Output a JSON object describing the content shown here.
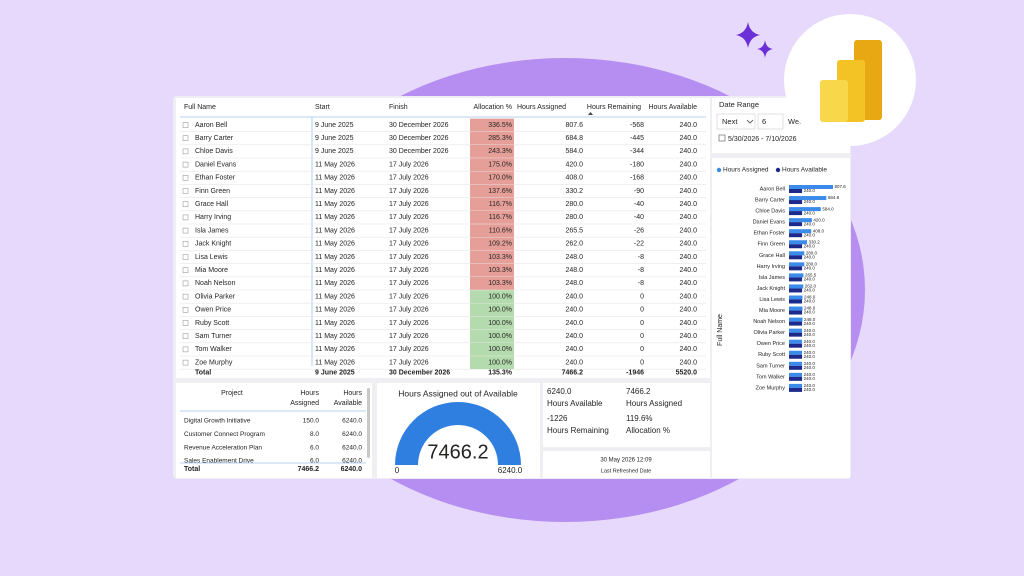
{
  "table": {
    "columns": [
      "Full Name",
      "Start",
      "Finish",
      "Allocation %",
      "Hours Assigned",
      "Hours Remaining",
      "Hours Available"
    ],
    "rows": [
      [
        "Aaron Bell",
        "9 June 2025",
        "30 December 2026",
        "336.5%",
        "807.6",
        "-568",
        "240.0"
      ],
      [
        "Barry Carter",
        "9 June 2025",
        "30 December 2026",
        "285.3%",
        "684.8",
        "-445",
        "240.0"
      ],
      [
        "Chloe Davis",
        "9 June 2025",
        "30 December 2026",
        "243.3%",
        "584.0",
        "-344",
        "240.0"
      ],
      [
        "Daniel Evans",
        "11 May 2026",
        "17 July 2026",
        "175.0%",
        "420.0",
        "-180",
        "240.0"
      ],
      [
        "Ethan Foster",
        "11 May 2026",
        "17 July 2026",
        "170.0%",
        "408.0",
        "-168",
        "240.0"
      ],
      [
        "Finn Green",
        "11 May 2026",
        "17 July 2026",
        "137.6%",
        "330.2",
        "-90",
        "240.0"
      ],
      [
        "Grace Hall",
        "11 May 2026",
        "17 July 2026",
        "116.7%",
        "280.0",
        "-40",
        "240.0"
      ],
      [
        "Harry Irving",
        "11 May 2026",
        "17 July 2026",
        "116.7%",
        "280.0",
        "-40",
        "240.0"
      ],
      [
        "Isla James",
        "11 May 2026",
        "17 July 2026",
        "110.6%",
        "265.5",
        "-26",
        "240.0"
      ],
      [
        "Jack Knight",
        "11 May 2026",
        "17 July 2026",
        "109.2%",
        "262.0",
        "-22",
        "240.0"
      ],
      [
        "Lisa Lewis",
        "11 May 2026",
        "17 July 2026",
        "103.3%",
        "248.0",
        "-8",
        "240.0"
      ],
      [
        "Mia Moore",
        "11 May 2026",
        "17 July 2026",
        "103.3%",
        "248.0",
        "-8",
        "240.0"
      ],
      [
        "Noah Nelson",
        "11 May 2026",
        "17 July 2026",
        "103.3%",
        "248.0",
        "-8",
        "240.0"
      ],
      [
        "Olivia Parker",
        "11 May 2026",
        "17 July 2026",
        "100.0%",
        "240.0",
        "0",
        "240.0"
      ],
      [
        "Owen Price",
        "11 May 2026",
        "17 July 2026",
        "100.0%",
        "240.0",
        "0",
        "240.0"
      ],
      [
        "Ruby Scott",
        "11 May 2026",
        "17 July 2026",
        "100.0%",
        "240.0",
        "0",
        "240.0"
      ],
      [
        "Sam Turner",
        "11 May 2026",
        "17 July 2026",
        "100.0%",
        "240.0",
        "0",
        "240.0"
      ],
      [
        "Tom Walker",
        "11 May 2026",
        "17 July 2026",
        "100.0%",
        "240.0",
        "0",
        "240.0"
      ],
      [
        "Zoe Murphy",
        "11 May 2026",
        "17 July 2026",
        "100.0%",
        "240.0",
        "0",
        "240.0"
      ]
    ],
    "total": [
      "Total",
      "9 June 2025",
      "30 December 2026",
      "135.3%",
      "7466.2",
      "-1946",
      "5520.0"
    ]
  },
  "date_range": {
    "title": "Date Range",
    "mode": "Next",
    "count": "6",
    "unit": "Weeks",
    "dates": "5/30/2026 - 7/10/2026"
  },
  "chart_data": {
    "type": "bar",
    "orientation": "horizontal",
    "y_label": "Full Name",
    "categories": [
      "Aaron Bell",
      "Barry Carter",
      "Chloe Davis",
      "Daniel Evans",
      "Ethan Foster",
      "Finn Green",
      "Grace Hall",
      "Harry Irving",
      "Isla James",
      "Jack Knight",
      "Lisa Lewis",
      "Mia Moore",
      "Noah Nelson",
      "Olivia Parker",
      "Owen Price",
      "Ruby Scott",
      "Sam Turner",
      "Tom Walker",
      "Zoe Murphy"
    ],
    "series": [
      {
        "name": "Hours Assigned",
        "color": "#3b8bea",
        "values": [
          807.6,
          684.8,
          584,
          420,
          408,
          330.2,
          280,
          280,
          265.5,
          262,
          248,
          248,
          248,
          240,
          240,
          240,
          240,
          240,
          240
        ],
        "value_labels": [
          "807.6",
          "684.8",
          "584.0",
          "420.0",
          "408.0",
          "330.2",
          "280.0",
          "280.0",
          "265.5",
          "262.0",
          "248.0",
          "248.0",
          "248.0",
          "240.0",
          "240.0",
          "240.0",
          "240.0",
          "240.0",
          "240.0"
        ]
      },
      {
        "name": "Hours Available",
        "color": "#1d2a8c",
        "values": [
          240,
          240,
          240,
          240,
          240,
          240,
          240,
          240,
          240,
          240,
          240,
          240,
          240,
          240,
          240,
          240,
          240,
          240,
          240
        ],
        "value_labels": [
          "240.0",
          "240.0",
          "240.0",
          "240.0",
          "240.0",
          "240.0",
          "240.0",
          "240.0",
          "240.0",
          "240.0",
          "240.0",
          "240.0",
          "240.0",
          "240.0",
          "240.0",
          "240.0",
          "240.0",
          "240.0",
          "240.0"
        ]
      }
    ]
  },
  "projects": {
    "columns": [
      "Project",
      "Hours Assigned",
      "Hours Available"
    ],
    "rows": [
      [
        "Digital Growth Initiative",
        "150.0",
        "6240.0"
      ],
      [
        "Customer Connect Program",
        "8.0",
        "6240.0"
      ],
      [
        "Revenue Acceleration Plan",
        "6.0",
        "6240.0"
      ],
      [
        "Sales Enablement Drive",
        "6.0",
        "6240.0"
      ]
    ],
    "total": [
      "Total",
      "7466.2",
      "6240.0"
    ]
  },
  "gauge": {
    "title": "Hours Assigned out of Available",
    "value": "7466.2",
    "min": "0",
    "max": "6240.0"
  },
  "kpis": [
    {
      "value": "6240.0",
      "label": "Hours Available"
    },
    {
      "value": "7466.2",
      "label": "Hours Assigned"
    },
    {
      "value": "-1226",
      "label": "Hours Remaining"
    },
    {
      "value": "119.6%",
      "label": "Allocation %"
    }
  ],
  "refresh": {
    "value": "30 May 2026 12:09",
    "label": "Last Refreshed Date"
  }
}
